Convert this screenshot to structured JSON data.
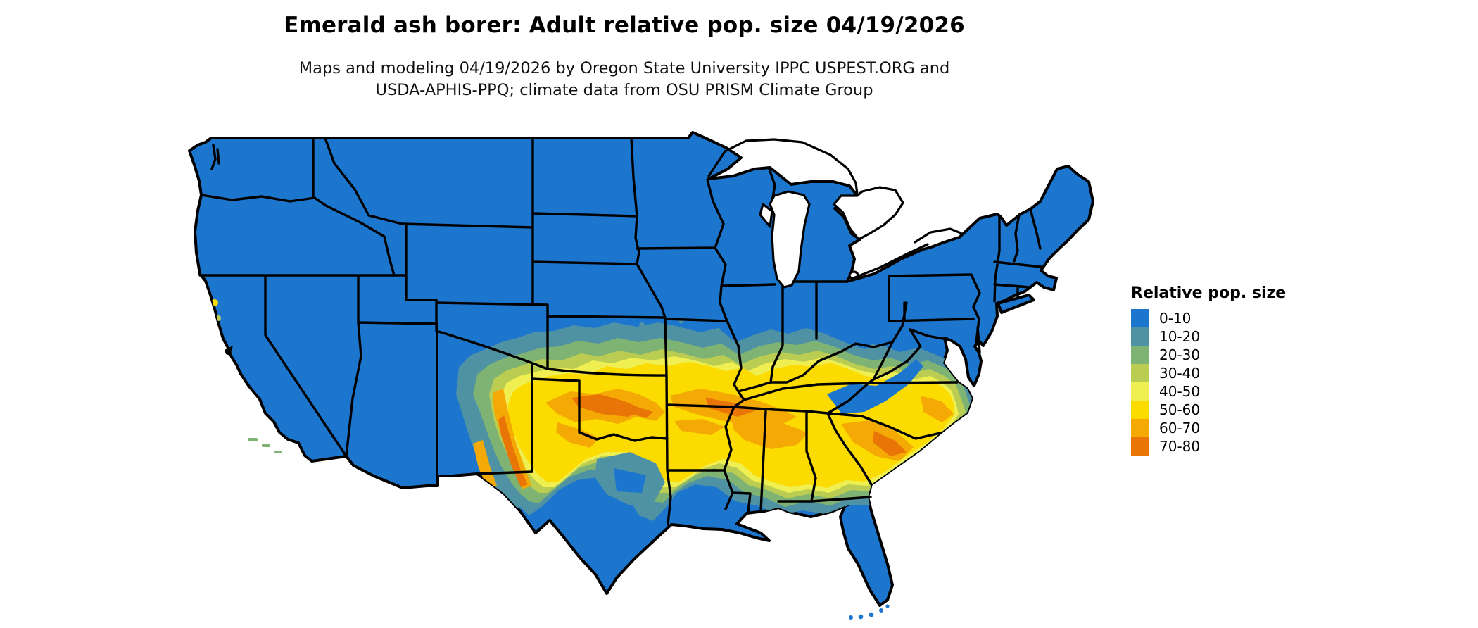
{
  "figure": {
    "title": "Emerald ash borer: Adult relative pop. size 04/19/2026",
    "subtitle_line1": "Maps and modeling 04/19/2026 by Oregon State University IPPC USPEST.ORG and",
    "subtitle_line2": "USDA-APHIS-PPQ; climate data from OSU PRISM Climate Group"
  },
  "legend": {
    "title": "Relative pop. size",
    "items": [
      {
        "label": "0-10",
        "color": "#1d76cd"
      },
      {
        "label": "10-20",
        "color": "#4f92a4"
      },
      {
        "label": "20-30",
        "color": "#7fb373"
      },
      {
        "label": "30-40",
        "color": "#bacd52"
      },
      {
        "label": "40-50",
        "color": "#efef52"
      },
      {
        "label": "50-60",
        "color": "#fbdb00"
      },
      {
        "label": "60-70",
        "color": "#f4a905"
      },
      {
        "label": "70-80",
        "color": "#ea7507"
      }
    ]
  },
  "map": {
    "base_color": "#1d76cd",
    "border_color": "#000000",
    "water_color": "#ffffff"
  },
  "chart_data": {
    "type": "heatmap",
    "title": "Emerald ash borer: Adult relative pop. size 04/19/2026",
    "region": "Contiguous United States with state boundaries",
    "legend_title": "Relative pop. size",
    "legend_position": "right",
    "bins": [
      {
        "range": "0-10",
        "color": "#1d76cd"
      },
      {
        "range": "10-20",
        "color": "#4f92a4"
      },
      {
        "range": "20-30",
        "color": "#7fb373"
      },
      {
        "range": "30-40",
        "color": "#bacd52"
      },
      {
        "range": "40-50",
        "color": "#efef52"
      },
      {
        "range": "50-60",
        "color": "#fbdb00"
      },
      {
        "range": "60-70",
        "color": "#f4a905"
      },
      {
        "range": "70-80",
        "color": "#ea7507"
      }
    ]
  }
}
